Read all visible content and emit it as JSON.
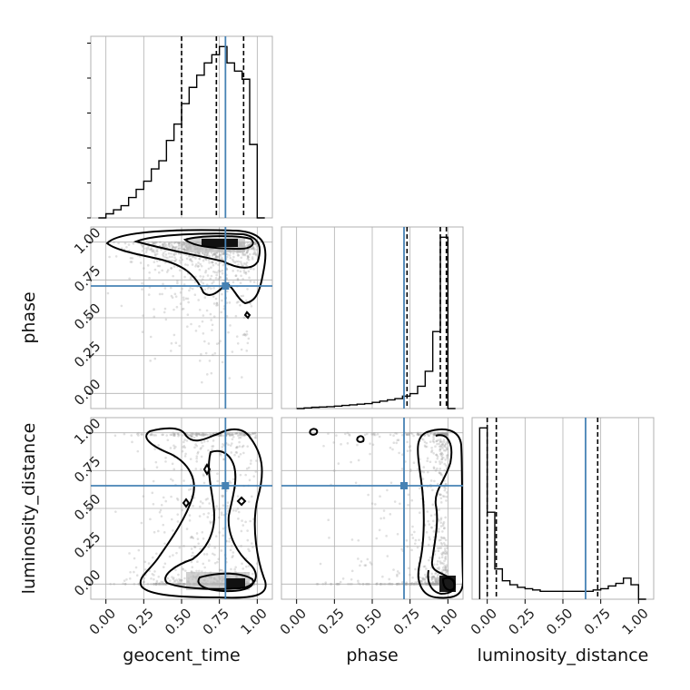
{
  "chart_data": {
    "type": "corner",
    "parameters": [
      "geocent_time",
      "phase",
      "luminosity_distance"
    ],
    "axis_range": [
      -0.1,
      1.1
    ],
    "tick_labels": [
      "0.00",
      "0.25",
      "0.50",
      "0.75",
      "1.00"
    ],
    "tick_values": [
      0,
      0.25,
      0.5,
      0.75,
      1.0
    ],
    "grid": true,
    "colors": {
      "truth": "#4682b4",
      "histogram": "#000000",
      "scatter": "#9e9e9e",
      "grid": "#b0b0b0"
    },
    "truths": {
      "geocent_time": 0.79,
      "phase": 0.71,
      "luminosity_distance": 0.65
    },
    "quantiles": {
      "geocent_time": [
        0.5,
        0.73,
        0.91
      ],
      "phase": [
        0.73,
        0.95,
        0.99
      ],
      "luminosity_distance": [
        0.0,
        0.06,
        0.73
      ]
    },
    "histograms": {
      "geocent_time": {
        "bin_edges": [
          -0.05,
          0.0,
          0.05,
          0.1,
          0.15,
          0.2,
          0.25,
          0.3,
          0.35,
          0.4,
          0.45,
          0.5,
          0.55,
          0.6,
          0.65,
          0.7,
          0.75,
          0.8,
          0.85,
          0.9,
          0.95,
          1.0,
          1.05
        ],
        "counts": [
          0,
          1,
          2,
          3,
          5,
          7,
          9,
          12,
          14,
          19,
          23,
          28,
          32,
          35,
          38,
          40,
          42,
          38,
          36,
          34,
          18,
          0
        ]
      },
      "phase": {
        "bin_edges": [
          0.0,
          0.05,
          0.1,
          0.15,
          0.2,
          0.25,
          0.3,
          0.35,
          0.4,
          0.45,
          0.5,
          0.55,
          0.6,
          0.65,
          0.7,
          0.75,
          0.8,
          0.85,
          0.9,
          0.95,
          1.0,
          1.05
        ],
        "counts": [
          0,
          0.5,
          1,
          1.2,
          1.5,
          2,
          2.5,
          3,
          3.5,
          4,
          5,
          6,
          7,
          8,
          10,
          12,
          18,
          30,
          62,
          138,
          0
        ]
      },
      "luminosity_distance": {
        "bin_edges": [
          -0.05,
          0.0,
          0.05,
          0.1,
          0.15,
          0.2,
          0.25,
          0.3,
          0.35,
          0.4,
          0.45,
          0.5,
          0.55,
          0.6,
          0.65,
          0.7,
          0.75,
          0.8,
          0.85,
          0.9,
          0.95,
          1.0,
          1.05
        ],
        "counts": [
          130,
          66,
          23,
          14,
          11,
          9,
          8,
          7,
          6,
          6,
          6,
          6,
          6,
          6,
          6,
          7,
          8,
          10,
          12,
          16,
          11,
          0
        ]
      }
    },
    "scatter_2d": {
      "phase_vs_geocent_time": {
        "mode_x": 0.8,
        "mode_y": 1.0,
        "spread": "dense ridge along phase=1, diffuse cloud toward upper-right"
      },
      "luminosity_distance_vs_geocent_time": {
        "mode_x": 0.82,
        "mode_y": 0.0,
        "secondary_mode_y": 1.0
      },
      "luminosity_distance_vs_phase": {
        "mode_x": 1.0,
        "mode_y": 0.0,
        "secondary_mode_y": 1.0
      }
    }
  }
}
